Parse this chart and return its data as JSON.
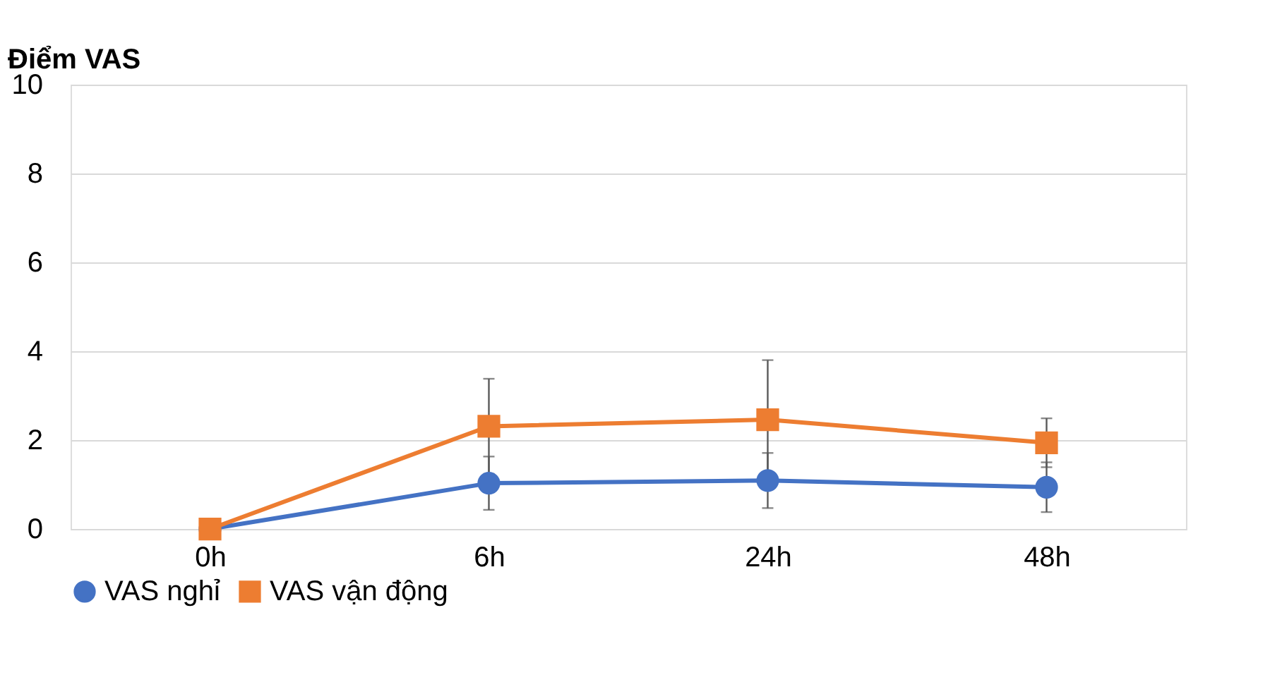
{
  "chart_data": {
    "type": "line",
    "ylabel": "Điểm VAS",
    "categories": [
      "0h",
      "6h",
      "24h",
      "48h"
    ],
    "series": [
      {
        "name": "VAS nghỉ",
        "color": "#4472c4",
        "marker": "circle",
        "values": [
          0,
          1.03,
          1.09,
          0.94
        ],
        "errors": [
          null,
          0.6,
          0.62,
          0.56
        ]
      },
      {
        "name": "VAS vận động",
        "color": "#ed7d31",
        "marker": "square",
        "values": [
          0,
          2.31,
          2.46,
          1.94
        ],
        "errors": [
          null,
          1.07,
          1.34,
          0.55
        ]
      }
    ],
    "ylim": [
      0,
      10
    ],
    "yticks": [
      0,
      2,
      4,
      6,
      8,
      10
    ],
    "grid": "y",
    "legend": "bottom"
  }
}
